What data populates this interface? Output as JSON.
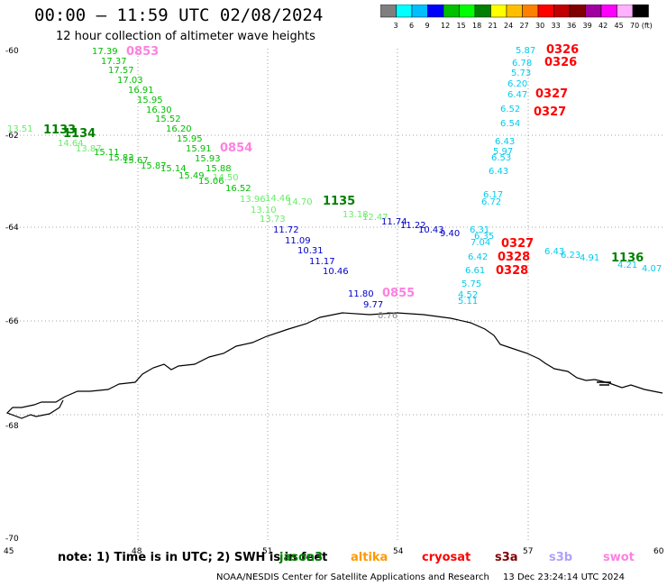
{
  "title": "00:00 – 11:59 UTC 02/08/2024",
  "subtitle": "12 hour collection of altimeter wave heights",
  "color_scale": {
    "colors": [
      "#7f7f7f",
      "#00ffff",
      "#00bfff",
      "#0000ff",
      "#00c000",
      "#00ff00",
      "#008000",
      "#ffff00",
      "#ffbf00",
      "#ff8000",
      "#ff0000",
      "#c00000",
      "#800000",
      "#a000a0",
      "#ff00ff",
      "#ffb0ff",
      "#000000"
    ],
    "tick_labels": [
      "3",
      "6",
      "9",
      "12",
      "15",
      "18",
      "21",
      "24",
      "27",
      "30",
      "33",
      "36",
      "39",
      "42",
      "45",
      "70 (ft)"
    ]
  },
  "axes": {
    "lat_labels": [
      "-60",
      "-62",
      "-64",
      "-66",
      "-68",
      "-70"
    ],
    "lon_labels": [
      "45",
      "48",
      "51",
      "54",
      "57",
      "60"
    ]
  },
  "note": "note: 1) Time is in UTC; 2) SWH is in feet",
  "satellites": [
    {
      "name": "jason3",
      "color": "#008000"
    },
    {
      "name": "altika",
      "color": "#ff9900"
    },
    {
      "name": "cryosat",
      "color": "#ff0000"
    },
    {
      "name": "s3a",
      "color": "#800000"
    },
    {
      "name": "s3b",
      "color": "#b0a0ff"
    },
    {
      "name": "swot",
      "color": "#ff80e0"
    }
  ],
  "footer_org": "NOAA/NESDIS Center for Satellite Applications and Research",
  "footer_date": "13 Dec 23:24:14 UTC 2024",
  "pass_times": [
    {
      "t": "0853",
      "c": "#ff80e0"
    },
    {
      "t": "0854",
      "c": "#ff80e0"
    },
    {
      "t": "0855",
      "c": "#ff80e0"
    },
    {
      "t": "1133",
      "c": "#008000"
    },
    {
      "t": "1134",
      "c": "#008000"
    },
    {
      "t": "1135",
      "c": "#008000"
    },
    {
      "t": "1136",
      "c": "#008000"
    },
    {
      "t": "0326",
      "c": "#ff0000"
    },
    {
      "t": "0326",
      "c": "#ff0000"
    },
    {
      "t": "0327",
      "c": "#ff0000"
    },
    {
      "t": "0327",
      "c": "#ff0000"
    },
    {
      "t": "0327",
      "c": "#ff0000"
    },
    {
      "t": "0328",
      "c": "#ff0000"
    },
    {
      "t": "0328",
      "c": "#ff0000"
    }
  ],
  "wave_heights": [
    {
      "v": "17.39",
      "c": "#00c000"
    },
    {
      "v": "17.37",
      "c": "#00c000"
    },
    {
      "v": "17.57",
      "c": "#00c000"
    },
    {
      "v": "17.03",
      "c": "#00c000"
    },
    {
      "v": "16.91",
      "c": "#00c000"
    },
    {
      "v": "15.95",
      "c": "#00c000"
    },
    {
      "v": "16.30",
      "c": "#00c000"
    },
    {
      "v": "15.52",
      "c": "#00c000"
    },
    {
      "v": "16.20",
      "c": "#00c000"
    },
    {
      "v": "15.95",
      "c": "#00c000"
    },
    {
      "v": "15.91",
      "c": "#00c000"
    },
    {
      "v": "15.93",
      "c": "#00c000"
    },
    {
      "v": "15.88",
      "c": "#00c000"
    },
    {
      "v": "14.50",
      "c": "#66ee66"
    },
    {
      "v": "15.06",
      "c": "#00c000"
    },
    {
      "v": "15.49",
      "c": "#00c000"
    },
    {
      "v": "15.14",
      "c": "#00c000"
    },
    {
      "v": "15.87",
      "c": "#00c000"
    },
    {
      "v": "15.67",
      "c": "#00c000"
    },
    {
      "v": "15.83",
      "c": "#00c000"
    },
    {
      "v": "15.11",
      "c": "#00c000"
    },
    {
      "v": "13.87",
      "c": "#66ee66"
    },
    {
      "v": "14.64",
      "c": "#66ee66"
    },
    {
      "v": "13.51",
      "c": "#66ee66"
    },
    {
      "v": "16.52",
      "c": "#00c000"
    },
    {
      "v": "13.96",
      "c": "#66ee66"
    },
    {
      "v": "14.46",
      "c": "#66ee66"
    },
    {
      "v": "14.70",
      "c": "#66ee66"
    },
    {
      "v": "13.10",
      "c": "#66ee66"
    },
    {
      "v": "13.73",
      "c": "#66ee66"
    },
    {
      "v": "13.18",
      "c": "#66ee66"
    },
    {
      "v": "12.47",
      "c": "#66ee66"
    },
    {
      "v": "11.72",
      "c": "#0000c8"
    },
    {
      "v": "11.09",
      "c": "#0000c8"
    },
    {
      "v": "10.31",
      "c": "#0000c8"
    },
    {
      "v": "11.17",
      "c": "#0000c8"
    },
    {
      "v": "10.46",
      "c": "#0000c8"
    },
    {
      "v": "11.80",
      "c": "#0000c8"
    },
    {
      "v": "9.77",
      "c": "#0000c8"
    },
    {
      "v": "0.76",
      "c": "#888888"
    },
    {
      "v": "11.74",
      "c": "#0000c8"
    },
    {
      "v": "11.22",
      "c": "#0000c8"
    },
    {
      "v": "10.43",
      "c": "#0000c8"
    },
    {
      "v": "9.40",
      "c": "#0000c8"
    },
    {
      "v": "5.87",
      "c": "#00ccee"
    },
    {
      "v": "6.78",
      "c": "#00ccee"
    },
    {
      "v": "5.73",
      "c": "#00ccee"
    },
    {
      "v": "6.20",
      "c": "#00ccee"
    },
    {
      "v": "6.47",
      "c": "#00ccee"
    },
    {
      "v": "6.52",
      "c": "#00ccee"
    },
    {
      "v": "6.54",
      "c": "#00ccee"
    },
    {
      "v": "6.43",
      "c": "#00ccee"
    },
    {
      "v": "5.97",
      "c": "#00ccee"
    },
    {
      "v": "6.53",
      "c": "#00ccee"
    },
    {
      "v": "6.43",
      "c": "#00ccee"
    },
    {
      "v": "6.17",
      "c": "#00ccee"
    },
    {
      "v": "6.72",
      "c": "#00ccee"
    },
    {
      "v": "6.31",
      "c": "#00ccee"
    },
    {
      "v": "7.04",
      "c": "#00ccee"
    },
    {
      "v": "6.35",
      "c": "#00ccee"
    },
    {
      "v": "6.42",
      "c": "#00ccee"
    },
    {
      "v": "6.61",
      "c": "#00ccee"
    },
    {
      "v": "5.75",
      "c": "#00ccee"
    },
    {
      "v": "4.52",
      "c": "#00ccee"
    },
    {
      "v": "5.11",
      "c": "#00ccee"
    },
    {
      "v": "6.43",
      "c": "#00ccee"
    },
    {
      "v": "6.23",
      "c": "#00ccee"
    },
    {
      "v": "4.91",
      "c": "#00ccee"
    },
    {
      "v": "4.21",
      "c": "#00ccee"
    },
    {
      "v": "4.07",
      "c": "#00ccee"
    }
  ]
}
